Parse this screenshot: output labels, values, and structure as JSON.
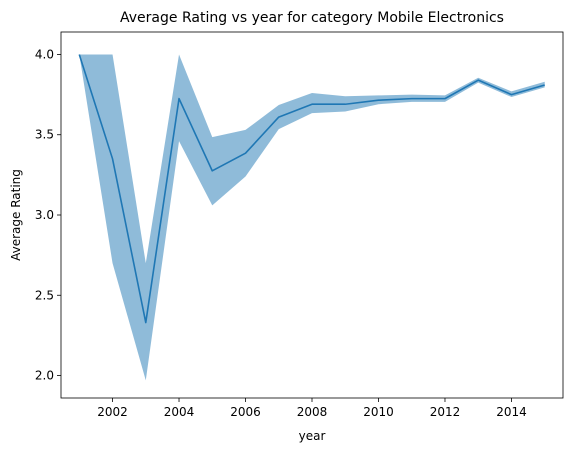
{
  "chart_data": {
    "type": "line",
    "title": "Average Rating vs year for category Mobile Electronics",
    "xlabel": "year",
    "ylabel": "Average Rating",
    "xlim": [
      2000.45,
      2015.55
    ],
    "ylim": [
      1.86,
      4.14
    ],
    "x_ticks": [
      2002,
      2004,
      2006,
      2008,
      2010,
      2012,
      2014
    ],
    "y_ticks": [
      2.0,
      2.5,
      3.0,
      3.5,
      4.0
    ],
    "y_tick_labels": [
      "2.0",
      "2.5",
      "3.0",
      "3.5",
      "4.0"
    ],
    "grid": false,
    "legend": "none",
    "line_color": "#1f77b4",
    "band_color": "#1f77b4",
    "band_opacity": 0.5,
    "series": [
      {
        "x": [
          2001,
          2002,
          2003,
          2004,
          2005,
          2006,
          2007,
          2008,
          2009,
          2010,
          2011,
          2012,
          2013,
          2014,
          2015
        ],
        "values": [
          4.0,
          3.35,
          2.33,
          3.725,
          3.275,
          3.385,
          3.61,
          3.69,
          3.69,
          3.715,
          3.725,
          3.725,
          3.84,
          3.75,
          3.81
        ],
        "lower": [
          4.0,
          2.7,
          1.97,
          3.46,
          3.06,
          3.24,
          3.535,
          3.635,
          3.645,
          3.69,
          3.705,
          3.705,
          3.825,
          3.735,
          3.795
        ],
        "upper": [
          4.0,
          4.0,
          2.7,
          4.0,
          3.485,
          3.53,
          3.685,
          3.76,
          3.74,
          3.745,
          3.75,
          3.745,
          3.855,
          3.77,
          3.83
        ]
      }
    ]
  }
}
